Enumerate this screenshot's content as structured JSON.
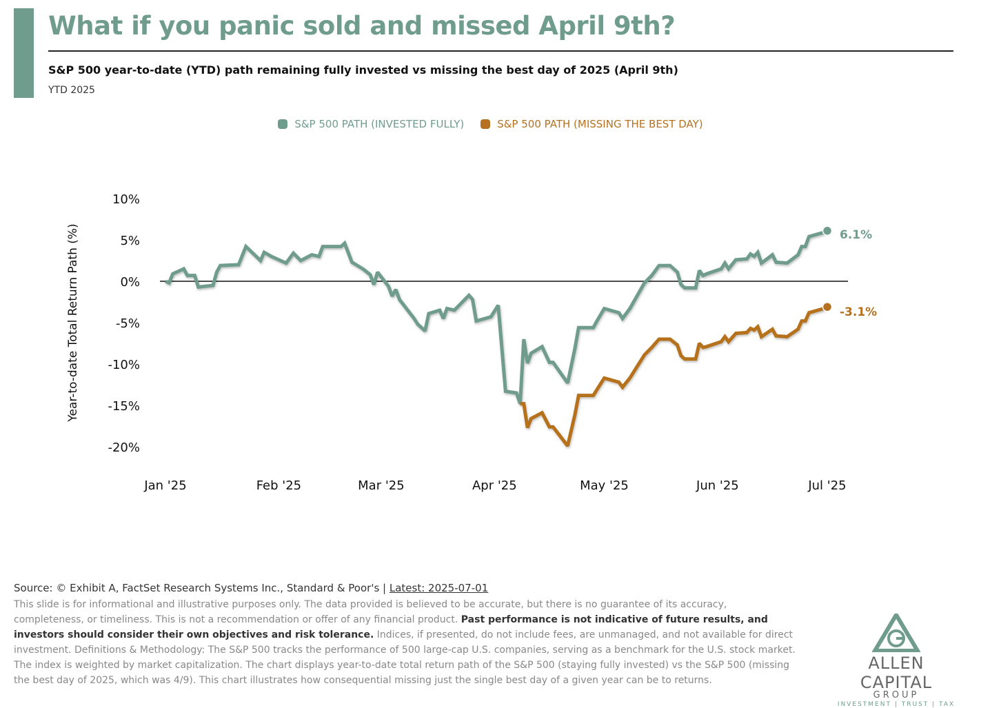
{
  "header": {
    "title": "What if you panic sold and missed April 9th?",
    "subtitle": "S&P 500 year-to-date (YTD) path remaining fully invested vs missing the best day of 2025 (April 9th)",
    "period": "YTD 2025"
  },
  "colors": {
    "accent": "#6f9c8d",
    "invested": "#6f9c8d",
    "missing": "#b5711f"
  },
  "chart_data": {
    "type": "line",
    "ylabel": "Year-to-date Total Return Path (%)",
    "ylim": [
      -20,
      10
    ],
    "y_ticks": [
      "10%",
      "5%",
      "0%",
      "-5%",
      "-10%",
      "-15%",
      "-20%"
    ],
    "y_tick_values": [
      10,
      5,
      0,
      -5,
      -10,
      -15,
      -20
    ],
    "x_ticks": [
      "Jan '25",
      "Feb '25",
      "Mar '25",
      "Apr '25",
      "May '25",
      "Jun '25",
      "Jul '25"
    ],
    "x_tick_dates": [
      "2025-01-01",
      "2025-02-01",
      "2025-03-01",
      "2025-04-01",
      "2025-05-01",
      "2025-06-01",
      "2025-07-01"
    ],
    "xlim": [
      "2025-01-01",
      "2025-07-01"
    ],
    "zero_line": true,
    "grid": false,
    "legend_position": "top",
    "series": [
      {
        "name": "S&P 500 PATH (INVESTED FULLY)",
        "end_label": "6.1%",
        "points": [
          [
            "2025-01-01",
            0
          ],
          [
            "2025-01-02",
            -0.2
          ],
          [
            "2025-01-03",
            0.9
          ],
          [
            "2025-01-06",
            1.5
          ],
          [
            "2025-01-07",
            0.7
          ],
          [
            "2025-01-09",
            0.7
          ],
          [
            "2025-01-10",
            -0.7
          ],
          [
            "2025-01-14",
            -0.5
          ],
          [
            "2025-01-15",
            1.1
          ],
          [
            "2025-01-16",
            1.9
          ],
          [
            "2025-01-21",
            2.0
          ],
          [
            "2025-01-23",
            4.2
          ],
          [
            "2025-01-27",
            2.5
          ],
          [
            "2025-01-28",
            3.5
          ],
          [
            "2025-01-30",
            3.0
          ],
          [
            "2025-02-03",
            2.2
          ],
          [
            "2025-02-05",
            3.4
          ],
          [
            "2025-02-07",
            2.5
          ],
          [
            "2025-02-10",
            3.2
          ],
          [
            "2025-02-12",
            3.0
          ],
          [
            "2025-02-13",
            4.2
          ],
          [
            "2025-02-18",
            4.2
          ],
          [
            "2025-02-19",
            4.6
          ],
          [
            "2025-02-21",
            2.3
          ],
          [
            "2025-02-24",
            1.5
          ],
          [
            "2025-02-26",
            0.8
          ],
          [
            "2025-02-27",
            -0.4
          ],
          [
            "2025-02-28",
            1.1
          ],
          [
            "2025-03-03",
            -0.6
          ],
          [
            "2025-03-04",
            -1.8
          ],
          [
            "2025-03-05",
            -1.0
          ],
          [
            "2025-03-06",
            -2.2
          ],
          [
            "2025-03-10",
            -4.5
          ],
          [
            "2025-03-11",
            -5.2
          ],
          [
            "2025-03-13",
            -6.0
          ],
          [
            "2025-03-14",
            -3.9
          ],
          [
            "2025-03-17",
            -3.5
          ],
          [
            "2025-03-18",
            -4.5
          ],
          [
            "2025-03-19",
            -3.3
          ],
          [
            "2025-03-21",
            -3.5
          ],
          [
            "2025-03-25",
            -1.7
          ],
          [
            "2025-03-26",
            -2.2
          ],
          [
            "2025-03-27",
            -4.8
          ],
          [
            "2025-03-31",
            -4.3
          ],
          [
            "2025-04-02",
            -2.9
          ],
          [
            "2025-04-04",
            -13.3
          ],
          [
            "2025-04-07",
            -13.5
          ],
          [
            "2025-04-08",
            -14.8
          ],
          [
            "2025-04-09",
            -7.0
          ],
          [
            "2025-04-10",
            -9.9
          ],
          [
            "2025-04-11",
            -8.7
          ],
          [
            "2025-04-14",
            -7.9
          ],
          [
            "2025-04-16",
            -9.8
          ],
          [
            "2025-04-17",
            -9.8
          ],
          [
            "2025-04-21",
            -12.3
          ],
          [
            "2025-04-23",
            -8.1
          ],
          [
            "2025-04-24",
            -5.6
          ],
          [
            "2025-04-28",
            -5.6
          ],
          [
            "2025-04-29",
            -4.8
          ],
          [
            "2025-05-01",
            -3.3
          ],
          [
            "2025-05-05",
            -3.8
          ],
          [
            "2025-05-06",
            -4.5
          ],
          [
            "2025-05-08",
            -3.3
          ],
          [
            "2025-05-12",
            -0.2
          ],
          [
            "2025-05-14",
            0.7
          ],
          [
            "2025-05-16",
            1.9
          ],
          [
            "2025-05-19",
            1.9
          ],
          [
            "2025-05-21",
            1.1
          ],
          [
            "2025-05-22",
            -0.4
          ],
          [
            "2025-05-23",
            -0.8
          ],
          [
            "2025-05-26",
            -0.8
          ],
          [
            "2025-05-27",
            1.3
          ],
          [
            "2025-05-28",
            0.7
          ],
          [
            "2025-05-29",
            0.9
          ],
          [
            "2025-06-02",
            1.5
          ],
          [
            "2025-06-03",
            2.2
          ],
          [
            "2025-06-04",
            1.5
          ],
          [
            "2025-06-06",
            2.6
          ],
          [
            "2025-06-09",
            2.7
          ],
          [
            "2025-06-10",
            3.3
          ],
          [
            "2025-06-11",
            3.0
          ],
          [
            "2025-06-12",
            3.5
          ],
          [
            "2025-06-13",
            2.2
          ],
          [
            "2025-06-16",
            3.2
          ],
          [
            "2025-06-17",
            2.3
          ],
          [
            "2025-06-20",
            2.2
          ],
          [
            "2025-06-23",
            3.2
          ],
          [
            "2025-06-24",
            4.2
          ],
          [
            "2025-06-25",
            4.2
          ],
          [
            "2025-06-26",
            5.4
          ],
          [
            "2025-06-30",
            5.9
          ],
          [
            "2025-07-01",
            6.1
          ]
        ]
      },
      {
        "name": "S&P 500 PATH (MISSING THE BEST DAY)",
        "end_label": "-3.1%",
        "points": [
          [
            "2025-04-08",
            -14.8
          ],
          [
            "2025-04-09",
            -14.8
          ],
          [
            "2025-04-10",
            -17.7
          ],
          [
            "2025-04-11",
            -16.6
          ],
          [
            "2025-04-14",
            -15.9
          ],
          [
            "2025-04-16",
            -17.6
          ],
          [
            "2025-04-17",
            -17.6
          ],
          [
            "2025-04-21",
            -19.9
          ],
          [
            "2025-04-23",
            -16.1
          ],
          [
            "2025-04-24",
            -13.8
          ],
          [
            "2025-04-28",
            -13.8
          ],
          [
            "2025-04-29",
            -13.1
          ],
          [
            "2025-05-01",
            -11.7
          ],
          [
            "2025-05-05",
            -12.2
          ],
          [
            "2025-05-06",
            -12.8
          ],
          [
            "2025-05-08",
            -11.7
          ],
          [
            "2025-05-12",
            -8.9
          ],
          [
            "2025-05-14",
            -8.0
          ],
          [
            "2025-05-16",
            -7.0
          ],
          [
            "2025-05-19",
            -7.0
          ],
          [
            "2025-05-21",
            -7.7
          ],
          [
            "2025-05-22",
            -9.0
          ],
          [
            "2025-05-23",
            -9.4
          ],
          [
            "2025-05-26",
            -9.4
          ],
          [
            "2025-05-27",
            -7.5
          ],
          [
            "2025-05-28",
            -8.0
          ],
          [
            "2025-05-29",
            -7.9
          ],
          [
            "2025-06-02",
            -7.3
          ],
          [
            "2025-06-03",
            -6.7
          ],
          [
            "2025-06-04",
            -7.3
          ],
          [
            "2025-06-06",
            -6.3
          ],
          [
            "2025-06-09",
            -6.2
          ],
          [
            "2025-06-10",
            -5.7
          ],
          [
            "2025-06-11",
            -5.9
          ],
          [
            "2025-06-12",
            -5.5
          ],
          [
            "2025-06-13",
            -6.7
          ],
          [
            "2025-06-16",
            -5.8
          ],
          [
            "2025-06-17",
            -6.6
          ],
          [
            "2025-06-20",
            -6.7
          ],
          [
            "2025-06-23",
            -5.8
          ],
          [
            "2025-06-24",
            -4.8
          ],
          [
            "2025-06-25",
            -4.8
          ],
          [
            "2025-06-26",
            -3.8
          ],
          [
            "2025-06-30",
            -3.3
          ],
          [
            "2025-07-01",
            -3.1
          ]
        ]
      }
    ]
  },
  "footer": {
    "source_prefix": "Source: © Exhibit A, FactSet Research Systems Inc., Standard & Poor's | ",
    "latest_link": "Latest: 2025-07-01",
    "disclaimer_1": "This slide is for informational and illustrative purposes only. The data provided is believed to be accurate, but there is no guarantee of its accuracy, completeness, or timeliness. This is not a recommendation or offer of any financial product. ",
    "disclaimer_bold": "Past performance is not indicative of future results, and investors should consider their own objectives and risk tolerance.",
    "disclaimer_2": " Indices, if presented, do not include fees, are unmanaged, and not available for direct investment. Definitions & Methodology: The S&P 500 tracks the performance of 500 large-cap U.S. companies, serving as a benchmark for the U.S. stock market. The index is weighted by market capitalization. The chart displays year-to-date total return path of the S&P 500 (staying fully invested) vs the S&P 500 (missing the best day of 2025, which was 4/9). This chart illustrates how consequential missing just the single best day of a given year can be to returns."
  },
  "logo": {
    "name": "ALLEN CAPITAL",
    "group": "GROUP",
    "tagline": "INVESTMENT | TRUST | TAX",
    "monogram": "AG"
  }
}
